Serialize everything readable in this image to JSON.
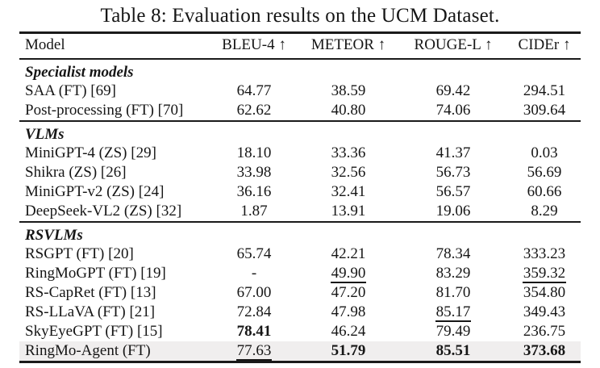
{
  "caption": "Table 8: Evaluation results on the UCM Dataset.",
  "colors": {
    "text": "#161616",
    "rule": "#1a1a1a",
    "highlight_row": "#f0eeee",
    "background": "#ffffff"
  },
  "table": {
    "columns": [
      "Model",
      "BLEU-4 ↑",
      "METEOR ↑",
      "ROUGE-L ↑",
      "CIDEr ↑"
    ],
    "legend": {
      "bold_means": "best value in column",
      "underline_means": "second-best value in column"
    },
    "sections": [
      {
        "label": "Specialist models",
        "rows": [
          {
            "model": "SAA (FT) [69]",
            "cells": [
              {
                "text": "64.77"
              },
              {
                "text": "38.59"
              },
              {
                "text": "69.42"
              },
              {
                "text": "294.51"
              }
            ]
          },
          {
            "model": "Post-processing (FT) [70]",
            "cells": [
              {
                "text": "62.62"
              },
              {
                "text": "40.80"
              },
              {
                "text": "74.06"
              },
              {
                "text": "309.64"
              }
            ]
          }
        ]
      },
      {
        "label": "VLMs",
        "rows": [
          {
            "model": "MiniGPT-4 (ZS) [29]",
            "cells": [
              {
                "text": "18.10"
              },
              {
                "text": "33.36"
              },
              {
                "text": "41.37"
              },
              {
                "text": "0.03"
              }
            ]
          },
          {
            "model": "Shikra (ZS) [26]",
            "cells": [
              {
                "text": "33.98"
              },
              {
                "text": "32.56"
              },
              {
                "text": "56.73"
              },
              {
                "text": "56.69"
              }
            ]
          },
          {
            "model": "MiniGPT-v2 (ZS) [24]",
            "cells": [
              {
                "text": "36.16"
              },
              {
                "text": "32.41"
              },
              {
                "text": "56.57"
              },
              {
                "text": "60.66"
              }
            ]
          },
          {
            "model": "DeepSeek-VL2 (ZS) [32]",
            "cells": [
              {
                "text": "1.87"
              },
              {
                "text": "13.91"
              },
              {
                "text": "19.06"
              },
              {
                "text": "8.29"
              }
            ]
          }
        ]
      },
      {
        "label": "RSVLMs",
        "rows": [
          {
            "model": "RSGPT (FT) [20]",
            "cells": [
              {
                "text": "65.74"
              },
              {
                "text": "42.21"
              },
              {
                "text": "78.34"
              },
              {
                "text": "333.23"
              }
            ]
          },
          {
            "model": "RingMoGPT (FT) [19]",
            "cells": [
              {
                "text": "-"
              },
              {
                "text": "49.90",
                "underline": true
              },
              {
                "text": "83.29"
              },
              {
                "text": "359.32",
                "underline": true
              }
            ]
          },
          {
            "model": "RS-CapRet (FT) [13]",
            "cells": [
              {
                "text": "67.00"
              },
              {
                "text": "47.20"
              },
              {
                "text": "81.70"
              },
              {
                "text": "354.80"
              }
            ]
          },
          {
            "model": "RS-LLaVA (FT) [21]",
            "cells": [
              {
                "text": "72.84"
              },
              {
                "text": "47.98"
              },
              {
                "text": "85.17",
                "underline": true
              },
              {
                "text": "349.43"
              }
            ]
          },
          {
            "model": "SkyEyeGPT (FT) [15]",
            "cells": [
              {
                "text": "78.41",
                "bold": true
              },
              {
                "text": "46.24"
              },
              {
                "text": "79.49"
              },
              {
                "text": "236.75"
              }
            ]
          },
          {
            "model": "RingMo-Agent (FT)",
            "highlight": true,
            "cells": [
              {
                "text": "77.63",
                "underline": true
              },
              {
                "text": "51.79",
                "bold": true
              },
              {
                "text": "85.51",
                "bold": true
              },
              {
                "text": "373.68",
                "bold": true
              }
            ]
          }
        ]
      }
    ]
  }
}
